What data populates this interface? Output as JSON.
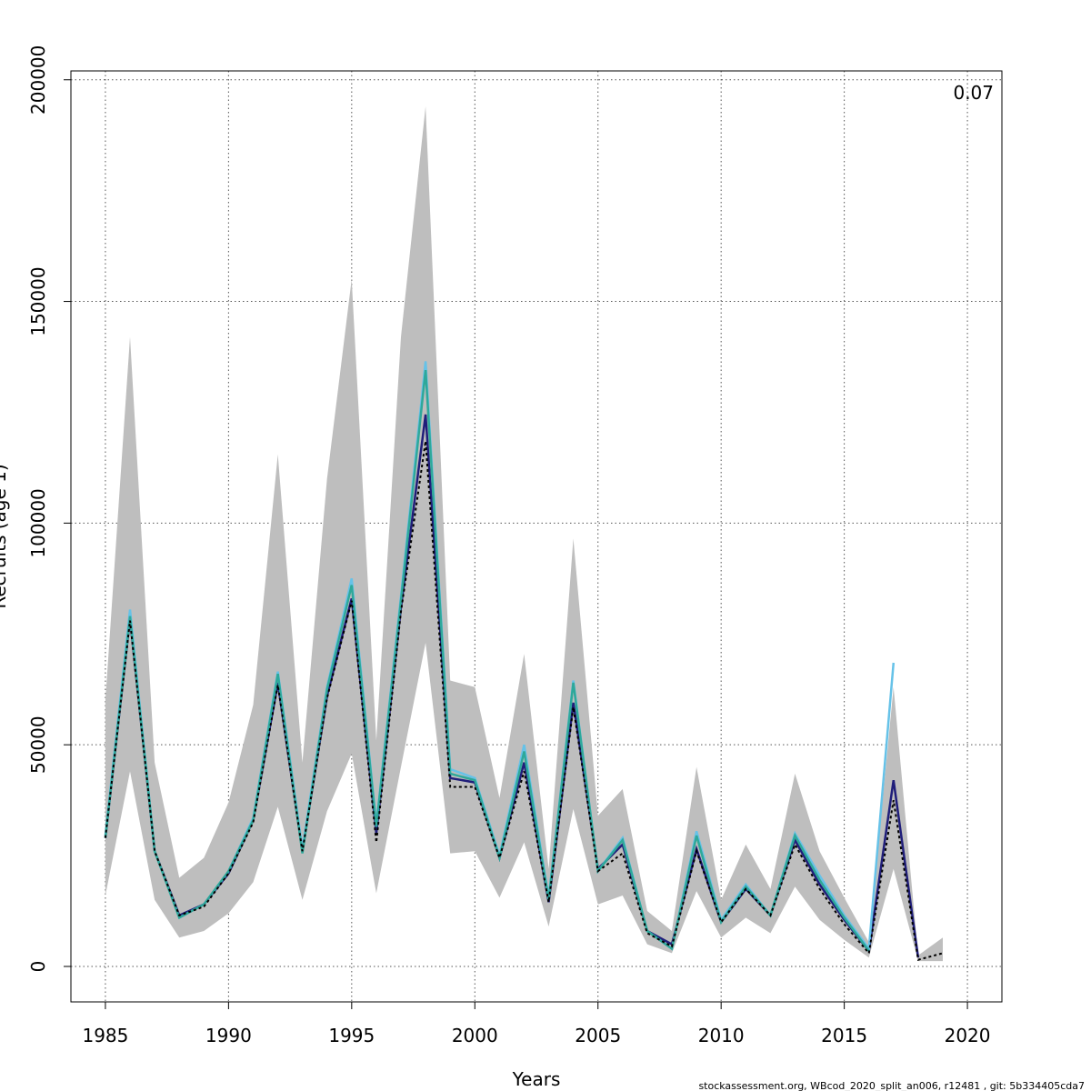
{
  "chart_data": {
    "type": "line",
    "title": "",
    "xlabel": "Years",
    "ylabel": "Recruits (age 1)",
    "xlim": [
      1983.6,
      2021.4
    ],
    "ylim": [
      -8000,
      202000
    ],
    "xticks": [
      1985,
      1990,
      1995,
      2000,
      2005,
      2010,
      2015,
      2020
    ],
    "yticks": [
      0,
      50000,
      100000,
      150000,
      200000
    ],
    "x_tick_labels": [
      "1985",
      "1990",
      "1995",
      "2000",
      "2005",
      "2010",
      "2015",
      "2020"
    ],
    "y_tick_labels": [
      "0",
      "50000",
      "100000",
      "150000",
      "200000"
    ],
    "grid": true,
    "annotation": "0.07",
    "footer": "stockassessment.org, WBcod_2020_split_an006, r12481 , git: 5b334405cda7",
    "x": [
      1985,
      1986,
      1987,
      1988,
      1989,
      1990,
      1991,
      1992,
      1993,
      1994,
      1995,
      1996,
      1997,
      1998,
      1999,
      2000,
      2001,
      2002,
      2003,
      2004,
      2005,
      2006,
      2007,
      2008,
      2009,
      2010,
      2011,
      2012,
      2013,
      2014,
      2015,
      2016,
      2017,
      2018,
      2019
    ],
    "band": {
      "name": "confidence interval",
      "color": "#bebebe",
      "lower": [
        16000,
        44000,
        15000,
        6500,
        8000,
        12000,
        19000,
        36000,
        15000,
        35000,
        48000,
        16500,
        45000,
        73000,
        25500,
        26000,
        15500,
        28000,
        9000,
        35500,
        14000,
        16000,
        5000,
        3000,
        17000,
        6500,
        11000,
        7500,
        18000,
        10500,
        6000,
        2000,
        22000,
        1200,
        1200
      ],
      "upper": [
        60000,
        142000,
        46000,
        20000,
        24500,
        37000,
        59000,
        115500,
        46000,
        110000,
        155000,
        51000,
        142000,
        194000,
        64500,
        63000,
        38000,
        70500,
        22000,
        96500,
        34000,
        40000,
        12500,
        8000,
        45000,
        15000,
        27500,
        17500,
        43500,
        26000,
        15500,
        5500,
        63000,
        2500,
        6500
      ]
    },
    "series": [
      {
        "name": "base run (dotted)",
        "color": "#000000",
        "style": "dotted",
        "values": [
          29000,
          78000,
          26000,
          11500,
          13500,
          21000,
          32500,
          63500,
          26000,
          60500,
          82500,
          28000,
          80000,
          118500,
          40500,
          40500,
          24500,
          44000,
          14500,
          58500,
          21500,
          25500,
          7500,
          4500,
          26000,
          10000,
          17500,
          11500,
          27500,
          17500,
          9500,
          3000,
          37500,
          1500,
          3000
        ]
      },
      {
        "name": "retro peel (navy)",
        "color": "#201e7a",
        "style": "solid",
        "values": [
          29000,
          78500,
          26000,
          11500,
          14000,
          21000,
          33000,
          64000,
          26000,
          61000,
          83000,
          30000,
          81000,
          124500,
          42500,
          41500,
          24500,
          46000,
          14500,
          59500,
          22000,
          27500,
          8000,
          5000,
          26500,
          10000,
          17500,
          11500,
          28500,
          18500,
          10500,
          3500,
          42000,
          2000,
          null
        ]
      },
      {
        "name": "retro peel (light blue)",
        "color": "#66c2e8",
        "style": "solid",
        "values": [
          29500,
          80500,
          26000,
          11000,
          14000,
          21500,
          33500,
          66500,
          26500,
          63000,
          87500,
          32000,
          83500,
          136500,
          44500,
          42500,
          25000,
          50000,
          15500,
          64500,
          21500,
          29000,
          8000,
          4000,
          30500,
          10500,
          18500,
          11500,
          30000,
          20500,
          11500,
          4000,
          68500,
          null,
          null
        ]
      },
      {
        "name": "retro peel (teal)",
        "color": "#2ea89a",
        "style": "solid",
        "values": [
          29000,
          79000,
          26000,
          11000,
          14000,
          21500,
          33000,
          66000,
          25500,
          62500,
          86000,
          31500,
          82500,
          134500,
          43500,
          42000,
          24500,
          48500,
          15000,
          64000,
          21500,
          28500,
          8000,
          4000,
          29500,
          10000,
          18000,
          11500,
          29500,
          19500,
          11000,
          3500,
          null,
          null,
          null
        ]
      }
    ]
  }
}
